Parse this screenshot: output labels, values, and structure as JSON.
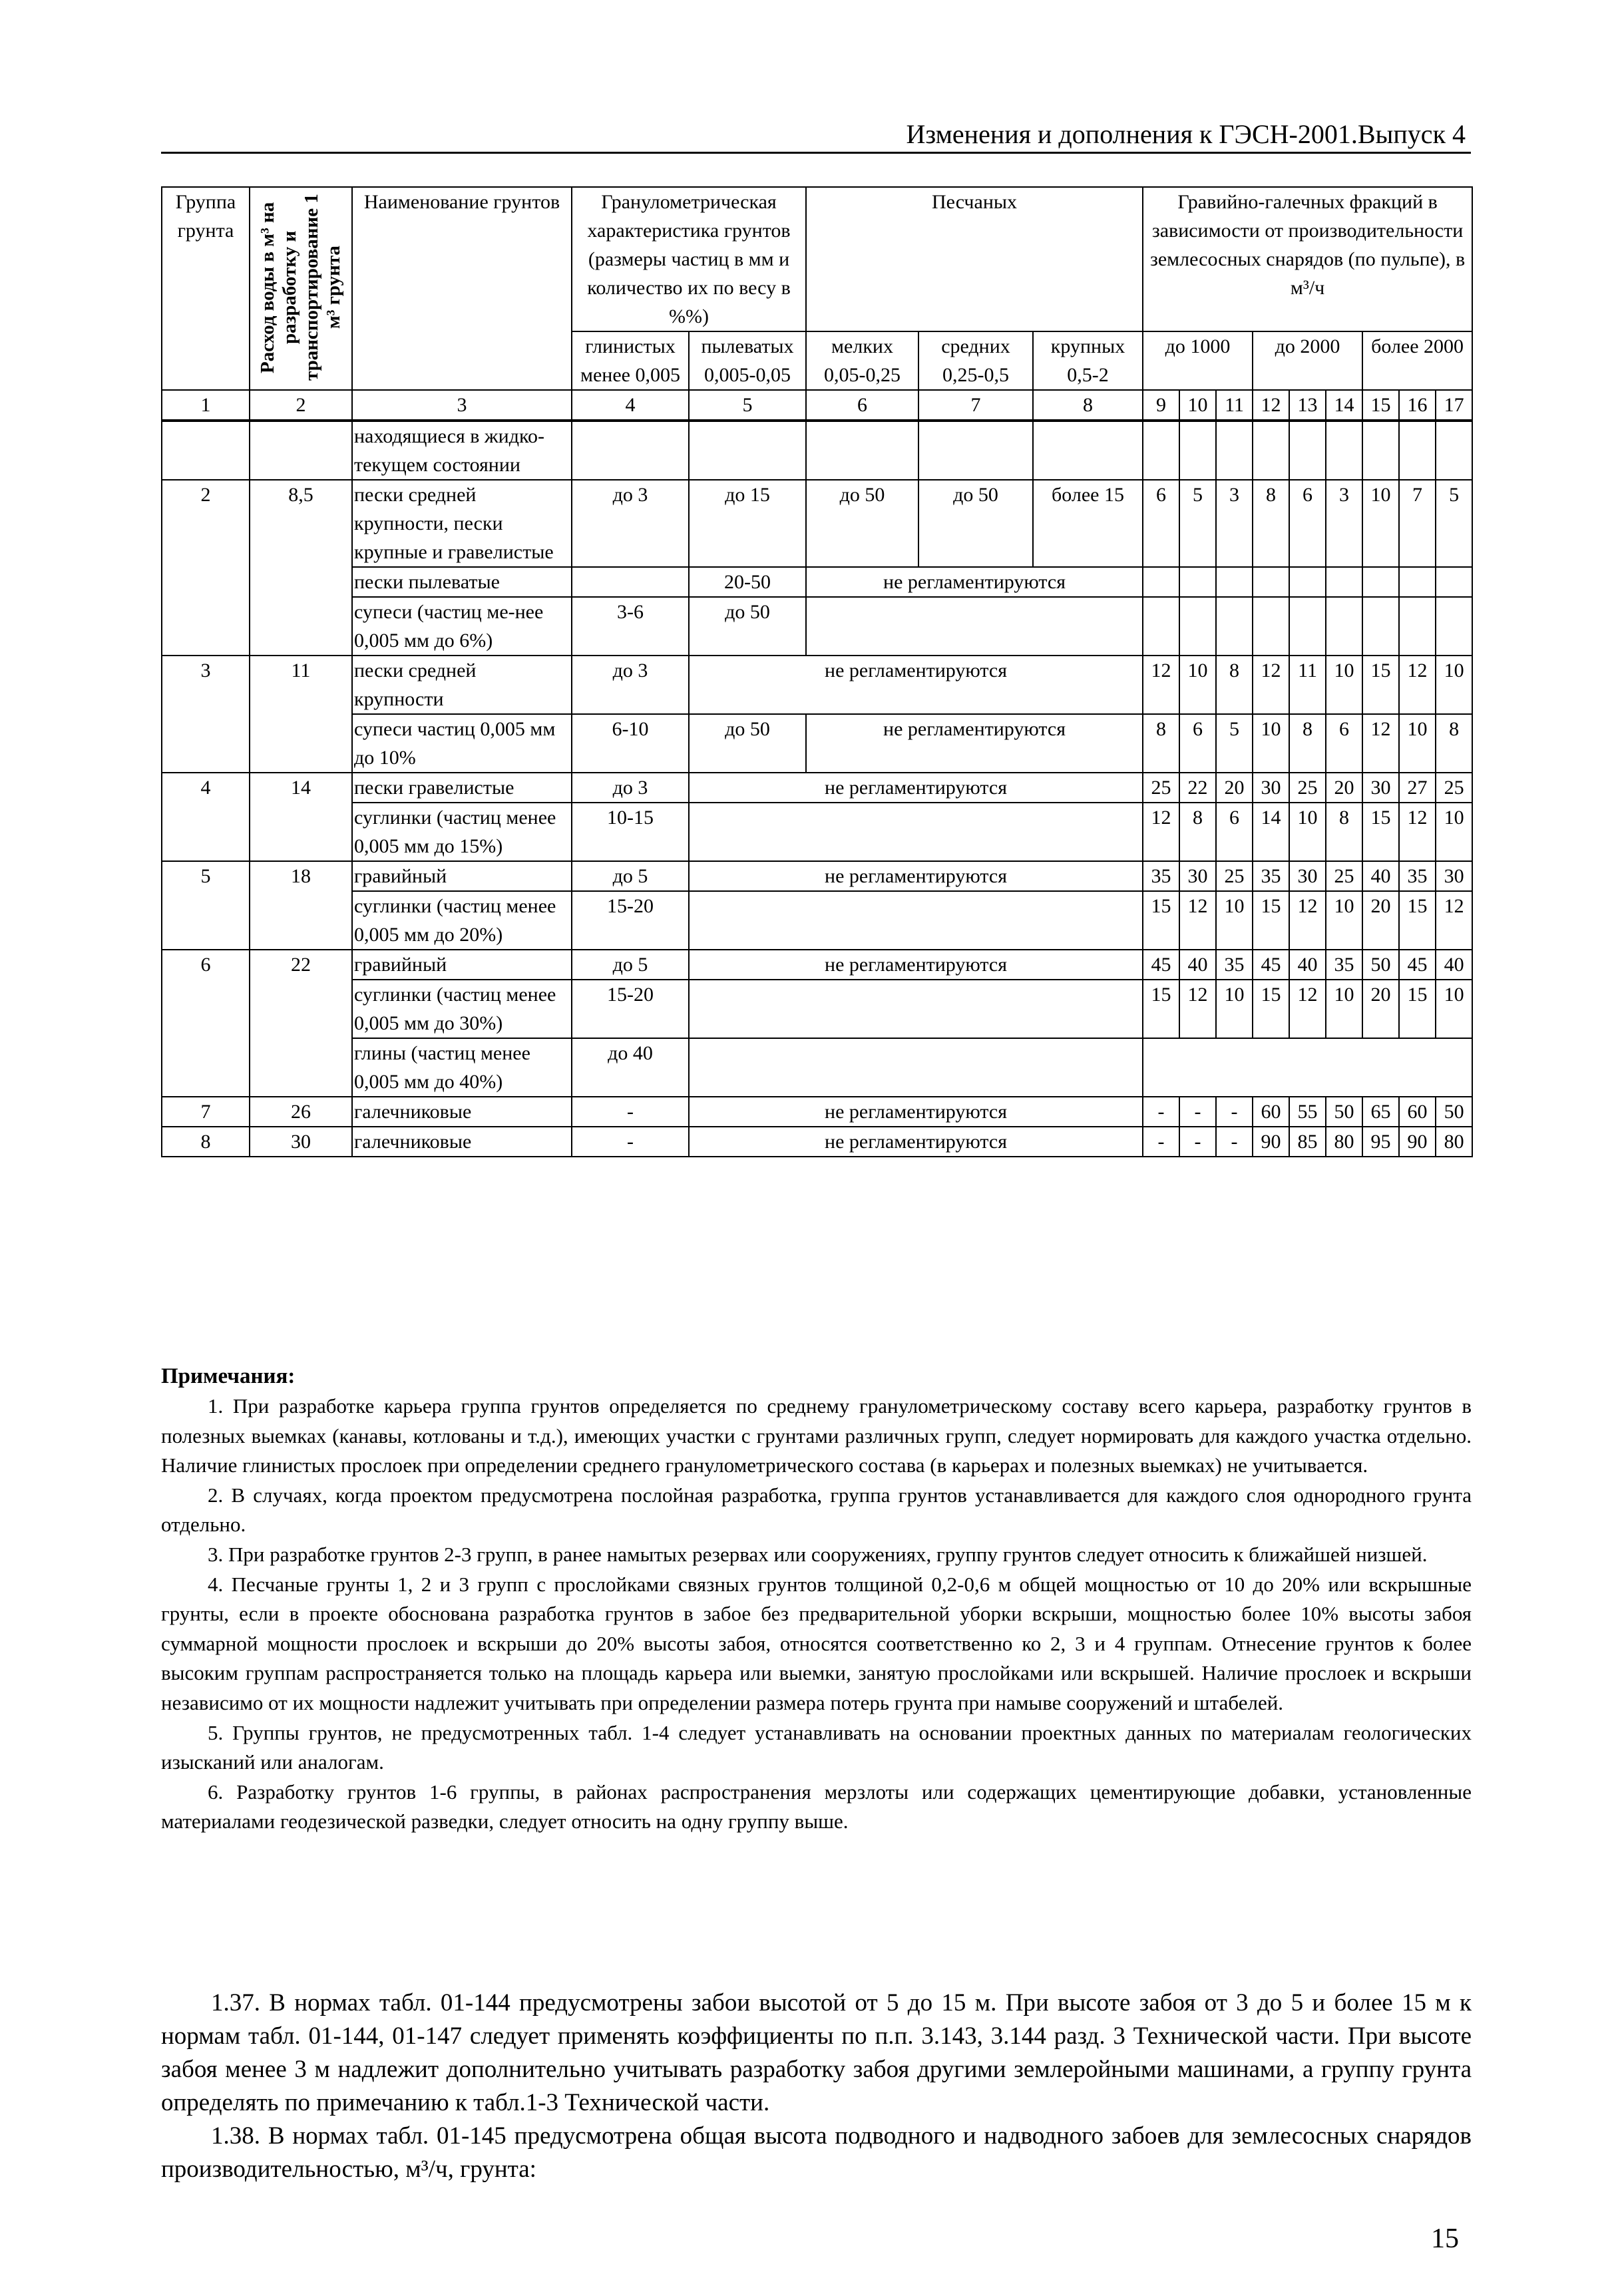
{
  "header": {
    "running_title": "Изменения и дополнения к ГЭСН-2001.Выпуск 4"
  },
  "table": {
    "headers": {
      "group": "Группа грунта",
      "water": "Расход воды в м³ на разработку и транспортирование 1 м³ грунта",
      "name": "Наименование грунтов",
      "granulometric": "Гранулометрическая характеристика грунтов (размеры частиц в мм и количество их по весу в %%)",
      "sandy": "Песчаных",
      "gravel": "Гравийно-галечных фракций в зависимости от производительности землесосных снарядов (по пульпе), в м³/ч",
      "clay": "глинистых менее 0,005",
      "silty": "пылеватых 0,005-0,05",
      "fine": "мелких 0,05-0,25",
      "medium": "средних 0,25-0,5",
      "coarse": "крупных 0,5-2",
      "upto1000": "до 1000",
      "upto2000": "до 2000",
      "over2000": "более 2000"
    },
    "column_numbers": [
      "1",
      "2",
      "3",
      "4",
      "5",
      "6",
      "7",
      "8",
      "9",
      "10",
      "11",
      "12",
      "13",
      "14",
      "15",
      "16",
      "17"
    ],
    "groups": [
      {
        "group": "",
        "water": "",
        "rows": [
          {
            "name": "находящиеся в жидко-текущем состоянии",
            "cells": [
              [
                "",
                1
              ],
              [
                "",
                1
              ],
              [
                "",
                1
              ],
              [
                "",
                1
              ],
              [
                "",
                1
              ],
              [
                "",
                1
              ],
              [
                "",
                1
              ],
              [
                "",
                1
              ],
              [
                "",
                1
              ],
              [
                "",
                1
              ],
              [
                "",
                1
              ],
              [
                "",
                1
              ],
              [
                "",
                1
              ],
              [
                "",
                1
              ]
            ]
          }
        ]
      },
      {
        "group": "2",
        "water": "8,5",
        "rows": [
          {
            "name": "пески средней крупности, пески крупные и гравелистые",
            "cells": [
              [
                "до 3",
                1
              ],
              [
                "до 15",
                1
              ],
              [
                "до 50",
                1
              ],
              [
                "до 50",
                1
              ],
              [
                "более 15",
                1
              ],
              [
                "6",
                1
              ],
              [
                "5",
                1
              ],
              [
                "3",
                1
              ],
              [
                "8",
                1
              ],
              [
                "6",
                1
              ],
              [
                "3",
                1
              ],
              [
                "10",
                1
              ],
              [
                "7",
                1
              ],
              [
                "5",
                1
              ]
            ]
          },
          {
            "name": "пески пылеватые",
            "cells": [
              [
                "",
                1
              ],
              [
                "20-50",
                1
              ],
              [
                "не регламентируются",
                3
              ],
              [
                "",
                1
              ],
              [
                "",
                1
              ],
              [
                "",
                1
              ],
              [
                "",
                1
              ],
              [
                "",
                1
              ],
              [
                "",
                1
              ],
              [
                "",
                1
              ],
              [
                "",
                1
              ],
              [
                "",
                1
              ]
            ]
          },
          {
            "name": "супеси (частиц ме-нее 0,005 мм до 6%)",
            "cells": [
              [
                "3-6",
                1
              ],
              [
                "до 50",
                1
              ],
              [
                "",
                3
              ],
              [
                "",
                1
              ],
              [
                "",
                1
              ],
              [
                "",
                1
              ],
              [
                "",
                1
              ],
              [
                "",
                1
              ],
              [
                "",
                1
              ],
              [
                "",
                1
              ],
              [
                "",
                1
              ],
              [
                "",
                1
              ]
            ]
          }
        ]
      },
      {
        "group": "3",
        "water": "11",
        "rows": [
          {
            "name": "пески средней крупности",
            "cells": [
              [
                "до 3",
                1
              ],
              [
                "не регламентируются",
                4
              ],
              [
                "12",
                1
              ],
              [
                "10",
                1
              ],
              [
                "8",
                1
              ],
              [
                "12",
                1
              ],
              [
                "11",
                1
              ],
              [
                "10",
                1
              ],
              [
                "15",
                1
              ],
              [
                "12",
                1
              ],
              [
                "10",
                1
              ]
            ]
          },
          {
            "name": "супеси частиц 0,005 мм до 10%",
            "cells": [
              [
                "6-10",
                1
              ],
              [
                "до 50",
                1
              ],
              [
                "не регламентируются",
                3
              ],
              [
                "8",
                1
              ],
              [
                "6",
                1
              ],
              [
                "5",
                1
              ],
              [
                "10",
                1
              ],
              [
                "8",
                1
              ],
              [
                "6",
                1
              ],
              [
                "12",
                1
              ],
              [
                "10",
                1
              ],
              [
                "8",
                1
              ]
            ]
          }
        ]
      },
      {
        "group": "4",
        "water": "14",
        "rows": [
          {
            "name": "пески гравелистые",
            "cells": [
              [
                "до 3",
                1
              ],
              [
                "не регламентируются",
                4
              ],
              [
                "25",
                1
              ],
              [
                "22",
                1
              ],
              [
                "20",
                1
              ],
              [
                "30",
                1
              ],
              [
                "25",
                1
              ],
              [
                "20",
                1
              ],
              [
                "30",
                1
              ],
              [
                "27",
                1
              ],
              [
                "25",
                1
              ]
            ]
          },
          {
            "name": "суглинки (частиц менее 0,005 мм до 15%)",
            "cells": [
              [
                "10-15",
                1
              ],
              [
                "",
                4
              ],
              [
                "12",
                1
              ],
              [
                "8",
                1
              ],
              [
                "6",
                1
              ],
              [
                "14",
                1
              ],
              [
                "10",
                1
              ],
              [
                "8",
                1
              ],
              [
                "15",
                1
              ],
              [
                "12",
                1
              ],
              [
                "10",
                1
              ]
            ]
          }
        ]
      },
      {
        "group": "5",
        "water": "18",
        "rows": [
          {
            "name": "гравийный",
            "cells": [
              [
                "до 5",
                1
              ],
              [
                "не регламентируются",
                4
              ],
              [
                "35",
                1
              ],
              [
                "30",
                1
              ],
              [
                "25",
                1
              ],
              [
                "35",
                1
              ],
              [
                "30",
                1
              ],
              [
                "25",
                1
              ],
              [
                "40",
                1
              ],
              [
                "35",
                1
              ],
              [
                "30",
                1
              ]
            ]
          },
          {
            "name": "суглинки (частиц менее 0,005 мм до 20%)",
            "cells": [
              [
                "15-20",
                1
              ],
              [
                "",
                4
              ],
              [
                "15",
                1
              ],
              [
                "12",
                1
              ],
              [
                "10",
                1
              ],
              [
                "15",
                1
              ],
              [
                "12",
                1
              ],
              [
                "10",
                1
              ],
              [
                "20",
                1
              ],
              [
                "15",
                1
              ],
              [
                "12",
                1
              ]
            ]
          }
        ]
      },
      {
        "group": "6",
        "water": "22",
        "rows": [
          {
            "name": "гравийный",
            "cells": [
              [
                "до 5",
                1
              ],
              [
                "не регламентируются",
                4
              ],
              [
                "45",
                1
              ],
              [
                "40",
                1
              ],
              [
                "35",
                1
              ],
              [
                "45",
                1
              ],
              [
                "40",
                1
              ],
              [
                "35",
                1
              ],
              [
                "50",
                1
              ],
              [
                "45",
                1
              ],
              [
                "40",
                1
              ]
            ]
          },
          {
            "name": "суглинки (частиц менее 0,005 мм до 30%)",
            "cells": [
              [
                "15-20",
                1
              ],
              [
                "",
                4
              ],
              [
                "15",
                1
              ],
              [
                "12",
                1
              ],
              [
                "10",
                1
              ],
              [
                "15",
                1
              ],
              [
                "12",
                1
              ],
              [
                "10",
                1
              ],
              [
                "20",
                1
              ],
              [
                "15",
                1
              ],
              [
                "10",
                1
              ]
            ]
          },
          {
            "name": "глины (частиц менее 0,005 мм до 40%)",
            "cells": [
              [
                "до 40",
                1
              ],
              [
                "",
                4
              ],
              [
                "",
                9
              ]
            ]
          }
        ]
      },
      {
        "group": "7",
        "water": "26",
        "rows": [
          {
            "name": "галечниковые",
            "cells": [
              [
                "-",
                1
              ],
              [
                "не регламентируются",
                4
              ],
              [
                "-",
                1
              ],
              [
                "-",
                1
              ],
              [
                "-",
                1
              ],
              [
                "60",
                1
              ],
              [
                "55",
                1
              ],
              [
                "50",
                1
              ],
              [
                "65",
                1
              ],
              [
                "60",
                1
              ],
              [
                "50",
                1
              ]
            ]
          }
        ]
      },
      {
        "group": "8",
        "water": "30",
        "rows": [
          {
            "name": "галечниковые",
            "cells": [
              [
                "-",
                1
              ],
              [
                "не регламентируются",
                4
              ],
              [
                "-",
                1
              ],
              [
                "-",
                1
              ],
              [
                "-",
                1
              ],
              [
                "90",
                1
              ],
              [
                "85",
                1
              ],
              [
                "80",
                1
              ],
              [
                "95",
                1
              ],
              [
                "90",
                1
              ],
              [
                "80",
                1
              ]
            ]
          }
        ]
      }
    ]
  },
  "notes": {
    "title": "Примечания:",
    "items": [
      "1. При разработке карьера группа грунтов определяется по среднему гранулометрическому составу всего карьера, разработку грунтов в полезных выемках (канавы, котлованы и т.д.), имеющих участки с грунтами различных групп, следует нормировать для каждого участка отдельно. Наличие глинистых прослоек при определении среднего гранулометрического состава (в карьерах и полезных выемках) не учитывается.",
      "2. В случаях, когда проектом предусмотрена послойная разработка, группа грунтов устанавливается для каждого слоя однородного грунта отдельно.",
      "3. При разработке грунтов 2-3 групп, в ранее намытых резервах или сооружениях, группу грунтов следует относить к ближайшей низшей.",
      "4. Песчаные грунты 1, 2 и 3 групп с прослойками связных грунтов толщиной 0,2-0,6 м общей мощностью от 10 до 20% или вскрышные грунты, если в проекте обоснована разработка грунтов в забое без предварительной уборки вскрыши, мощностью более 10% высоты забоя суммарной мощности прослоек и вскрыши до 20% высоты забоя, относятся соответственно ко 2, 3 и 4 группам. Отнесение грунтов к более высоким группам распространяется только на площадь карьера или выемки, занятую прослойками или вскрышей. Наличие прослоек и вскрыши независимо от их мощности надлежит учитывать при определении размера потерь грунта при намыве сооружений и штабелей.",
      "5. Группы грунтов, не предусмотренных табл. 1-4 следует устанавливать на основании проектных данных по материалам геологических изысканий или аналогам.",
      "6. Разработку грунтов 1-6 группы, в районах распространения мерзлоты или содержащих цементирующие добавки, установленные материалами геодезической разведки, следует относить на одну группу выше."
    ]
  },
  "paragraphs": [
    "1.37. В нормах табл. 01-144 предусмотрены забои высотой от 5 до 15 м. При высоте забоя от 3 до 5 и более 15 м к нормам табл. 01-144, 01-147 следует применять коэффициенты по п.п. 3.143, 3.144 разд. 3 Технической части. При высоте забоя менее 3 м надлежит дополнительно учитывать разработку забоя другими землеройными машинами, а группу грунта определять по примечанию к табл.1-3 Технической части.",
    "1.38. В нормах табл. 01-145 предусмотрена общая высота подводного и надводного забоев для землесосных снарядов производительностью, м³/ч, грунта:"
  ],
  "page_number": "15"
}
